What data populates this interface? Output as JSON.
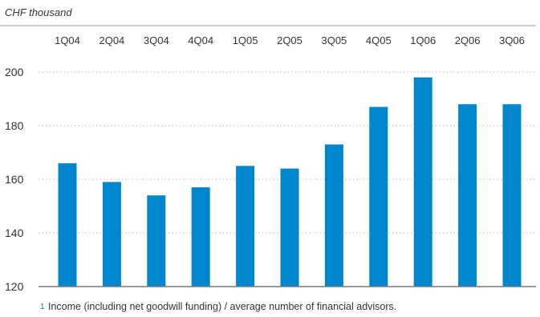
{
  "chart_data": {
    "type": "bar",
    "unit_label": "CHF thousand",
    "categories": [
      "1Q04",
      "2Q04",
      "3Q04",
      "4Q04",
      "1Q05",
      "2Q05",
      "3Q05",
      "4Q05",
      "1Q06",
      "2Q06",
      "3Q06"
    ],
    "values": [
      166,
      159,
      154,
      157,
      165,
      164,
      173,
      187,
      198,
      188,
      188
    ],
    "ylim": [
      120,
      200
    ],
    "yticks": [
      120,
      140,
      160,
      180,
      200
    ],
    "bar_color": "#0086cd",
    "grid": "dotted",
    "footnote_marker": "1",
    "footnote": "Income (including net goodwill funding) / average number of financial advisors."
  }
}
